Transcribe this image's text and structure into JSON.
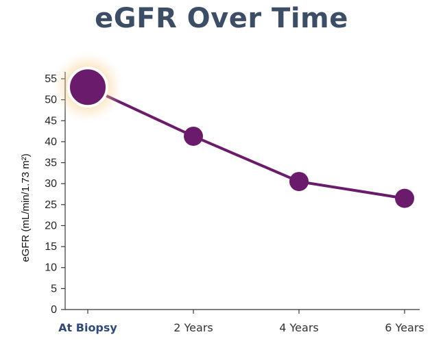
{
  "chart_data": {
    "type": "line",
    "title": "eGFR Over Time",
    "ylabel": "eGFR (mL/min/1.73 m²)",
    "xlabel": "",
    "categories": [
      "At Biopsy",
      "2 Years",
      "4 Years",
      "6 Years"
    ],
    "highlighted_category": "At Biopsy",
    "series": [
      {
        "values": [
          53,
          41.3,
          30.5,
          26.5
        ]
      }
    ],
    "ylim": [
      0,
      55
    ],
    "yticks": [
      0,
      5,
      10,
      15,
      20,
      25,
      30,
      35,
      40,
      45,
      50,
      55
    ],
    "grid": false,
    "colors": {
      "line": "#6a1b6b",
      "marker": "#6a1b6b",
      "highlight_glow": "#f5b24a",
      "title": "#3b4e66",
      "highlight_label": "#2f4a78"
    }
  }
}
